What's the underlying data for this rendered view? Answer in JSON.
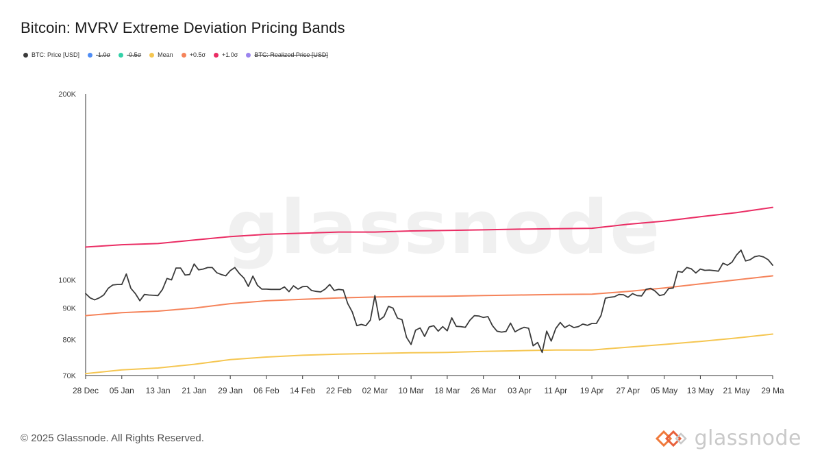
{
  "title": "Bitcoin: MVRV Extreme Deviation Pricing Bands",
  "legend": [
    {
      "label": "BTC: Price [USD]",
      "color": "#3a3a3a",
      "struck": false
    },
    {
      "label": "-1.0σ",
      "color": "#4f8df5",
      "struck": true
    },
    {
      "label": "-0.5σ",
      "color": "#33d1a8",
      "struck": true
    },
    {
      "label": "Mean",
      "color": "#f5c651",
      "struck": false
    },
    {
      "label": "+0.5σ",
      "color": "#f5835a",
      "struck": false
    },
    {
      "label": "+1.0σ",
      "color": "#ea2d64",
      "struck": false
    },
    {
      "label": "BTC: Realized Price [USD]",
      "color": "#9b84ee",
      "struck": true
    }
  ],
  "watermark": "glassnode",
  "footer": "© 2025 Glassnode. All Rights Reserved.",
  "brand": "glassnode",
  "chart_data": {
    "type": "line",
    "title": "Bitcoin: MVRV Extreme Deviation Pricing Bands",
    "yscale": "log",
    "ylim": [
      70000,
      200000
    ],
    "yticks": [
      {
        "value": 70000,
        "label": "70K"
      },
      {
        "value": 80000,
        "label": "80K"
      },
      {
        "value": 90000,
        "label": "90K"
      },
      {
        "value": 100000,
        "label": "100K"
      },
      {
        "value": 200000,
        "label": "200K"
      }
    ],
    "xlim": [
      "2024-12-28",
      "2025-05-29"
    ],
    "xticks": [
      {
        "date": "2024-12-28",
        "label": "28 Dec"
      },
      {
        "date": "2025-01-05",
        "label": "05 Jan"
      },
      {
        "date": "2025-01-13",
        "label": "13 Jan"
      },
      {
        "date": "2025-01-21",
        "label": "21 Jan"
      },
      {
        "date": "2025-01-29",
        "label": "29 Jan"
      },
      {
        "date": "2025-02-06",
        "label": "06 Feb"
      },
      {
        "date": "2025-02-14",
        "label": "14 Feb"
      },
      {
        "date": "2025-02-22",
        "label": "22 Feb"
      },
      {
        "date": "2025-03-02",
        "label": "02 Mar"
      },
      {
        "date": "2025-03-10",
        "label": "10 Mar"
      },
      {
        "date": "2025-03-18",
        "label": "18 Mar"
      },
      {
        "date": "2025-03-26",
        "label": "26 Mar"
      },
      {
        "date": "2025-04-03",
        "label": "03 Apr"
      },
      {
        "date": "2025-04-11",
        "label": "11 Apr"
      },
      {
        "date": "2025-04-19",
        "label": "19 Apr"
      },
      {
        "date": "2025-04-27",
        "label": "27 Apr"
      },
      {
        "date": "2025-05-05",
        "label": "05 May"
      },
      {
        "date": "2025-05-13",
        "label": "13 May"
      },
      {
        "date": "2025-05-21",
        "label": "21 May"
      },
      {
        "date": "2025-05-29",
        "label": "29 Ma"
      }
    ],
    "grid": false,
    "series": [
      {
        "name": "+1.0σ",
        "color": "#ea2d64",
        "points": [
          [
            "2024-12-28",
            113000
          ],
          [
            "2025-01-05",
            114000
          ],
          [
            "2025-01-13",
            114500
          ],
          [
            "2025-01-21",
            116000
          ],
          [
            "2025-01-29",
            117500
          ],
          [
            "2025-02-06",
            118500
          ],
          [
            "2025-02-14",
            119000
          ],
          [
            "2025-02-22",
            119500
          ],
          [
            "2025-03-02",
            119500
          ],
          [
            "2025-03-10",
            120000
          ],
          [
            "2025-03-18",
            120200
          ],
          [
            "2025-03-26",
            120500
          ],
          [
            "2025-04-03",
            120800
          ],
          [
            "2025-04-11",
            121000
          ],
          [
            "2025-04-19",
            121200
          ],
          [
            "2025-04-27",
            123000
          ],
          [
            "2025-05-05",
            124500
          ],
          [
            "2025-05-13",
            126500
          ],
          [
            "2025-05-21",
            128500
          ],
          [
            "2025-05-29",
            131000
          ]
        ]
      },
      {
        "name": "+0.5σ",
        "color": "#f5835a",
        "points": [
          [
            "2024-12-28",
            87500
          ],
          [
            "2025-01-05",
            88500
          ],
          [
            "2025-01-13",
            89000
          ],
          [
            "2025-01-21",
            90000
          ],
          [
            "2025-01-29",
            91500
          ],
          [
            "2025-02-06",
            92500
          ],
          [
            "2025-02-14",
            93000
          ],
          [
            "2025-02-22",
            93500
          ],
          [
            "2025-03-02",
            93800
          ],
          [
            "2025-03-10",
            94000
          ],
          [
            "2025-03-18",
            94100
          ],
          [
            "2025-03-26",
            94300
          ],
          [
            "2025-04-03",
            94500
          ],
          [
            "2025-04-11",
            94700
          ],
          [
            "2025-04-19",
            94800
          ],
          [
            "2025-04-27",
            95800
          ],
          [
            "2025-05-05",
            97000
          ],
          [
            "2025-05-13",
            98500
          ],
          [
            "2025-05-21",
            100000
          ],
          [
            "2025-05-29",
            101500
          ]
        ]
      },
      {
        "name": "Mean",
        "color": "#f5c651",
        "points": [
          [
            "2024-12-28",
            70500
          ],
          [
            "2025-01-05",
            71500
          ],
          [
            "2025-01-13",
            72000
          ],
          [
            "2025-01-21",
            73000
          ],
          [
            "2025-01-29",
            74300
          ],
          [
            "2025-02-06",
            75000
          ],
          [
            "2025-02-14",
            75500
          ],
          [
            "2025-02-22",
            75800
          ],
          [
            "2025-03-02",
            76000
          ],
          [
            "2025-03-10",
            76200
          ],
          [
            "2025-03-18",
            76300
          ],
          [
            "2025-03-26",
            76600
          ],
          [
            "2025-04-03",
            76800
          ],
          [
            "2025-04-11",
            77000
          ],
          [
            "2025-04-19",
            77000
          ],
          [
            "2025-04-27",
            77800
          ],
          [
            "2025-05-05",
            78600
          ],
          [
            "2025-05-13",
            79500
          ],
          [
            "2025-05-21",
            80500
          ],
          [
            "2025-05-29",
            81700
          ]
        ]
      },
      {
        "name": "BTC: Price [USD]",
        "color": "#3a3a3a",
        "points": [
          [
            "2024-12-28",
            95000
          ],
          [
            "2024-12-29",
            93500
          ],
          [
            "2024-12-30",
            92800
          ],
          [
            "2024-12-31",
            93500
          ],
          [
            "2025-01-01",
            94500
          ],
          [
            "2025-01-02",
            96900
          ],
          [
            "2025-01-03",
            98100
          ],
          [
            "2025-01-04",
            98300
          ],
          [
            "2025-01-05",
            98300
          ],
          [
            "2025-01-06",
            102200
          ],
          [
            "2025-01-07",
            96900
          ],
          [
            "2025-01-08",
            95000
          ],
          [
            "2025-01-09",
            92500
          ],
          [
            "2025-01-10",
            94700
          ],
          [
            "2025-01-11",
            94500
          ],
          [
            "2025-01-12",
            94400
          ],
          [
            "2025-01-13",
            94300
          ],
          [
            "2025-01-14",
            96500
          ],
          [
            "2025-01-15",
            100500
          ],
          [
            "2025-01-16",
            100000
          ],
          [
            "2025-01-17",
            104500
          ],
          [
            "2025-01-18",
            104500
          ],
          [
            "2025-01-19",
            101800
          ],
          [
            "2025-01-20",
            102000
          ],
          [
            "2025-01-21",
            106100
          ],
          [
            "2025-01-22",
            103800
          ],
          [
            "2025-01-23",
            104100
          ],
          [
            "2025-01-24",
            104700
          ],
          [
            "2025-01-25",
            104700
          ],
          [
            "2025-01-26",
            102700
          ],
          [
            "2025-01-27",
            102000
          ],
          [
            "2025-01-28",
            101500
          ],
          [
            "2025-01-29",
            103500
          ],
          [
            "2025-01-30",
            104700
          ],
          [
            "2025-01-31",
            102400
          ],
          [
            "2025-02-01",
            100700
          ],
          [
            "2025-02-02",
            97600
          ],
          [
            "2025-02-03",
            101400
          ],
          [
            "2025-02-04",
            98000
          ],
          [
            "2025-02-05",
            96600
          ],
          [
            "2025-02-06",
            96600
          ],
          [
            "2025-02-07",
            96500
          ],
          [
            "2025-02-08",
            96500
          ],
          [
            "2025-02-09",
            96500
          ],
          [
            "2025-02-10",
            97400
          ],
          [
            "2025-02-11",
            95700
          ],
          [
            "2025-02-12",
            97800
          ],
          [
            "2025-02-13",
            96600
          ],
          [
            "2025-02-14",
            97500
          ],
          [
            "2025-02-15",
            97600
          ],
          [
            "2025-02-16",
            96100
          ],
          [
            "2025-02-17",
            95800
          ],
          [
            "2025-02-18",
            95600
          ],
          [
            "2025-02-19",
            96600
          ],
          [
            "2025-02-20",
            98300
          ],
          [
            "2025-02-21",
            96100
          ],
          [
            "2025-02-22",
            96500
          ],
          [
            "2025-02-23",
            96300
          ],
          [
            "2025-02-24",
            91500
          ],
          [
            "2025-02-25",
            88700
          ],
          [
            "2025-02-26",
            84300
          ],
          [
            "2025-02-27",
            84700
          ],
          [
            "2025-02-28",
            84300
          ],
          [
            "2025-03-01",
            86100
          ],
          [
            "2025-03-02",
            94300
          ],
          [
            "2025-03-03",
            86100
          ],
          [
            "2025-03-04",
            87200
          ],
          [
            "2025-03-05",
            90600
          ],
          [
            "2025-03-06",
            90000
          ],
          [
            "2025-03-07",
            86700
          ],
          [
            "2025-03-08",
            86200
          ],
          [
            "2025-03-09",
            80700
          ],
          [
            "2025-03-10",
            78600
          ],
          [
            "2025-03-11",
            82900
          ],
          [
            "2025-03-12",
            83600
          ],
          [
            "2025-03-13",
            81000
          ],
          [
            "2025-03-14",
            83900
          ],
          [
            "2025-03-15",
            84300
          ],
          [
            "2025-03-16",
            82600
          ],
          [
            "2025-03-17",
            84000
          ],
          [
            "2025-03-18",
            82700
          ],
          [
            "2025-03-19",
            86800
          ],
          [
            "2025-03-20",
            84100
          ],
          [
            "2025-03-21",
            84000
          ],
          [
            "2025-03-22",
            83800
          ],
          [
            "2025-03-23",
            86000
          ],
          [
            "2025-03-24",
            87500
          ],
          [
            "2025-03-25",
            87400
          ],
          [
            "2025-03-26",
            86900
          ],
          [
            "2025-03-27",
            87200
          ],
          [
            "2025-03-28",
            84300
          ],
          [
            "2025-03-29",
            82600
          ],
          [
            "2025-03-30",
            82300
          ],
          [
            "2025-03-31",
            82500
          ],
          [
            "2025-04-01",
            85100
          ],
          [
            "2025-04-02",
            82400
          ],
          [
            "2025-04-03",
            83200
          ],
          [
            "2025-04-04",
            83800
          ],
          [
            "2025-04-05",
            83500
          ],
          [
            "2025-04-06",
            78200
          ],
          [
            "2025-04-07",
            79200
          ],
          [
            "2025-04-08",
            76300
          ],
          [
            "2025-04-09",
            82600
          ],
          [
            "2025-04-10",
            79600
          ],
          [
            "2025-04-11",
            83400
          ],
          [
            "2025-04-12",
            85300
          ],
          [
            "2025-04-13",
            83700
          ],
          [
            "2025-04-14",
            84500
          ],
          [
            "2025-04-15",
            83700
          ],
          [
            "2025-04-16",
            84000
          ],
          [
            "2025-04-17",
            84800
          ],
          [
            "2025-04-18",
            84400
          ],
          [
            "2025-04-19",
            85000
          ],
          [
            "2025-04-20",
            85000
          ],
          [
            "2025-04-21",
            87500
          ],
          [
            "2025-04-22",
            93400
          ],
          [
            "2025-04-23",
            93700
          ],
          [
            "2025-04-24",
            93900
          ],
          [
            "2025-04-25",
            94700
          ],
          [
            "2025-04-26",
            94600
          ],
          [
            "2025-04-27",
            93700
          ],
          [
            "2025-04-28",
            95000
          ],
          [
            "2025-04-29",
            94300
          ],
          [
            "2025-04-30",
            94200
          ],
          [
            "2025-05-01",
            96500
          ],
          [
            "2025-05-02",
            96900
          ],
          [
            "2025-05-03",
            95900
          ],
          [
            "2025-05-04",
            94300
          ],
          [
            "2025-05-05",
            94700
          ],
          [
            "2025-05-06",
            96800
          ],
          [
            "2025-05-07",
            97000
          ],
          [
            "2025-05-08",
            103200
          ],
          [
            "2025-05-09",
            102900
          ],
          [
            "2025-05-10",
            104700
          ],
          [
            "2025-05-11",
            104200
          ],
          [
            "2025-05-12",
            102600
          ],
          [
            "2025-05-13",
            104100
          ],
          [
            "2025-05-14",
            103600
          ],
          [
            "2025-05-15",
            103700
          ],
          [
            "2025-05-16",
            103500
          ],
          [
            "2025-05-17",
            103300
          ],
          [
            "2025-05-18",
            106400
          ],
          [
            "2025-05-19",
            105600
          ],
          [
            "2025-05-20",
            106800
          ],
          [
            "2025-05-21",
            109700
          ],
          [
            "2025-05-22",
            111700
          ],
          [
            "2025-05-23",
            107300
          ],
          [
            "2025-05-24",
            107800
          ],
          [
            "2025-05-25",
            109000
          ],
          [
            "2025-05-26",
            109400
          ],
          [
            "2025-05-27",
            108900
          ],
          [
            "2025-05-28",
            107800
          ],
          [
            "2025-05-29",
            105600
          ]
        ]
      }
    ]
  }
}
